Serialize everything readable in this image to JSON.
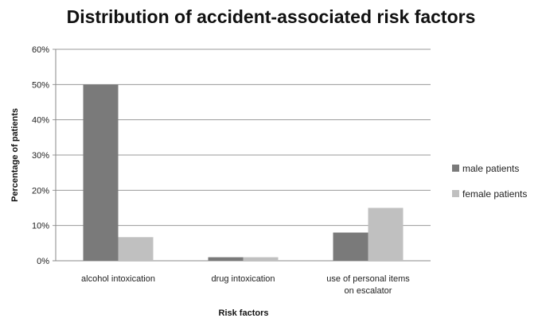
{
  "chart_data": {
    "type": "bar",
    "title": "Distribution of accident-associated risk factors",
    "xlabel": "Risk factors",
    "ylabel": "Percentage of patients",
    "categories": [
      [
        "alcohol intoxication"
      ],
      [
        "drug intoxication"
      ],
      [
        "use of personal items",
        "on escalator"
      ]
    ],
    "series": [
      {
        "name": "male patients",
        "values": [
          50,
          1,
          8
        ],
        "color": "#7a7a7a"
      },
      {
        "name": "female patients",
        "values": [
          6.7,
          1,
          15
        ],
        "color": "#c0c0c0"
      }
    ],
    "ylim": [
      0,
      60
    ],
    "yticks": [
      0,
      10,
      20,
      30,
      40,
      50,
      60
    ],
    "ytick_format": "percent",
    "grid": true,
    "legend_position": "right"
  }
}
